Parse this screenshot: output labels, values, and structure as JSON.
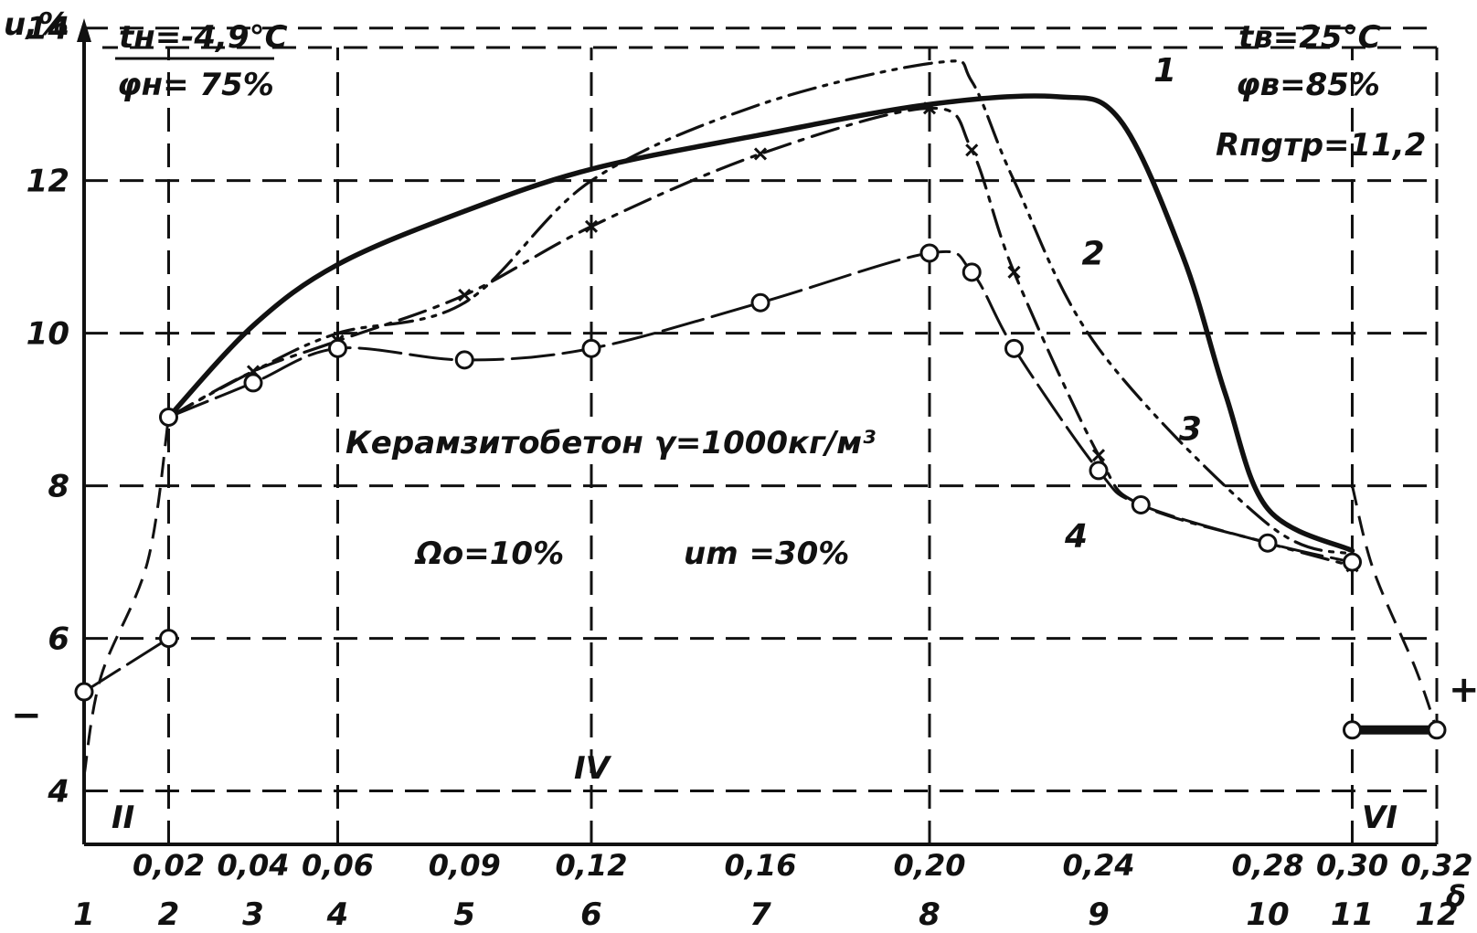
{
  "chart_data": {
    "type": "line",
    "y_axis_label": "u,%",
    "x_axis_label": "δ",
    "x_tick_labels": [
      "0,02",
      "0,04",
      "0,06",
      "0,09",
      "0,12",
      "0,16",
      "0,20",
      "0,24",
      "0,28",
      "0,30",
      "0,32"
    ],
    "x_tick_values": [
      0.02,
      0.04,
      0.06,
      0.09,
      0.12,
      0.16,
      0.2,
      0.24,
      0.28,
      0.3,
      0.32
    ],
    "point_numbers": [
      "1",
      "2",
      "3",
      "4",
      "5",
      "6",
      "7",
      "8",
      "9",
      "10",
      "11",
      "12"
    ],
    "point_number_values": [
      0,
      0.02,
      0.04,
      0.06,
      0.09,
      0.12,
      0.16,
      0.2,
      0.24,
      0.28,
      0.3,
      0.32
    ],
    "y_tick_labels": [
      "4",
      "6",
      "8",
      "10",
      "12",
      "14"
    ],
    "y_tick_values": [
      4,
      6,
      8,
      10,
      12,
      14
    ],
    "xlim": [
      0,
      0.32
    ],
    "ylim": [
      3.3,
      14.2
    ],
    "grid": true,
    "zone_labels": [
      "II",
      "IV",
      "VI"
    ],
    "sign_minus": "−",
    "sign_plus": "+",
    "outer_temp": "tн=-4,9°C",
    "outer_humidity": "φн= 75%",
    "inner_temp": "tв=25°C",
    "inner_humidity": "φв=85%",
    "resistance": "Rпgтр=11,2",
    "material": "Керамзитобетон γ=1000кг/м³",
    "omega": "Ωо=10%",
    "u_m": "um =30%",
    "series": [
      {
        "name": "1",
        "style": "solid-thick",
        "color": "#111111",
        "points": [
          [
            0.02,
            8.9
          ],
          [
            0.04,
            10.1
          ],
          [
            0.06,
            10.9
          ],
          [
            0.09,
            11.6
          ],
          [
            0.12,
            12.15
          ],
          [
            0.16,
            12.6
          ],
          [
            0.2,
            13.0
          ],
          [
            0.23,
            13.1
          ],
          [
            0.245,
            12.8
          ],
          [
            0.26,
            11.0
          ],
          [
            0.27,
            9.2
          ],
          [
            0.28,
            7.7
          ],
          [
            0.3,
            7.15
          ]
        ]
      },
      {
        "name": "2",
        "style": "dash-dot-dot",
        "color": "#111111",
        "points": [
          [
            0.02,
            8.9
          ],
          [
            0.04,
            9.5
          ],
          [
            0.06,
            10.0
          ],
          [
            0.09,
            10.4
          ],
          [
            0.12,
            12.0
          ],
          [
            0.16,
            13.0
          ],
          [
            0.202,
            13.55
          ],
          [
            0.21,
            13.3
          ],
          [
            0.22,
            12.0
          ],
          [
            0.24,
            9.8
          ],
          [
            0.28,
            7.5
          ],
          [
            0.3,
            7.1
          ]
        ]
      },
      {
        "name": "3",
        "style": "dash-dot",
        "color": "#111111",
        "points": [
          [
            0.02,
            8.9
          ],
          [
            0.04,
            9.5
          ],
          [
            0.06,
            9.9
          ],
          [
            0.09,
            10.5
          ],
          [
            0.12,
            11.4
          ],
          [
            0.16,
            12.35
          ],
          [
            0.2,
            12.95
          ],
          [
            0.21,
            12.4
          ],
          [
            0.22,
            10.8
          ],
          [
            0.24,
            8.4
          ],
          [
            0.25,
            7.75
          ],
          [
            0.28,
            7.25
          ],
          [
            0.3,
            6.95
          ]
        ]
      },
      {
        "name": "4",
        "style": "solid-circles",
        "color": "#111111",
        "points": [
          [
            0.02,
            8.9
          ],
          [
            0.04,
            9.35
          ],
          [
            0.06,
            9.8
          ],
          [
            0.09,
            9.65
          ],
          [
            0.12,
            9.8
          ],
          [
            0.16,
            10.4
          ],
          [
            0.2,
            11.05
          ],
          [
            0.21,
            10.8
          ],
          [
            0.22,
            9.8
          ],
          [
            0.24,
            8.2
          ],
          [
            0.25,
            7.75
          ],
          [
            0.28,
            7.25
          ],
          [
            0.3,
            7.0
          ]
        ]
      },
      {
        "name": "negative-side",
        "style": "solid-circles",
        "color": "#111111",
        "points": [
          [
            0.0,
            5.3
          ],
          [
            0.02,
            6.0
          ]
        ]
      },
      {
        "name": "positive-side",
        "style": "solid-circles",
        "color": "#111111",
        "points": [
          [
            0.3,
            4.8
          ],
          [
            0.32,
            4.8
          ]
        ]
      }
    ],
    "dashed_connectors": [
      {
        "points": [
          [
            0.0,
            4.2
          ],
          [
            0.004,
            5.5
          ],
          [
            0.015,
            7.0
          ],
          [
            0.02,
            8.9
          ]
        ]
      },
      {
        "points": [
          [
            0.3,
            8.0
          ],
          [
            0.305,
            6.9
          ],
          [
            0.315,
            5.6
          ],
          [
            0.32,
            4.8
          ]
        ]
      }
    ]
  }
}
